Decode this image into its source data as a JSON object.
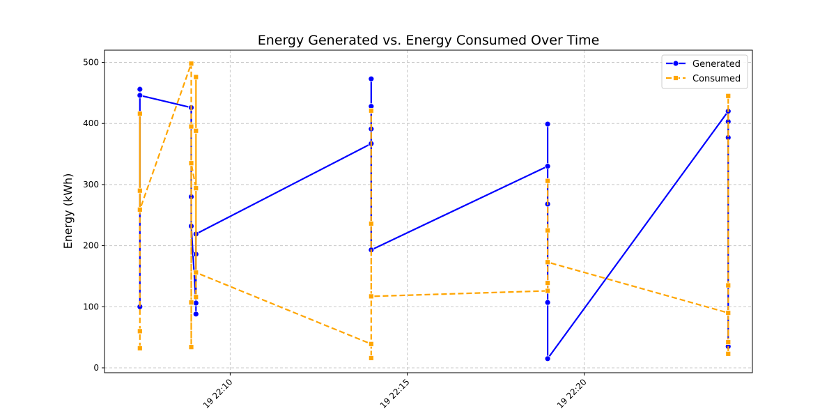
{
  "chart_data": {
    "type": "line",
    "title": "Energy Generated vs. Energy Consumed Over Time",
    "xlabel": "",
    "ylabel": "Energy (kWh)",
    "ylim": [
      -8,
      520
    ],
    "xlim": [
      "19 22:06:27",
      "19 22:24:45"
    ],
    "x_ticks": [
      "19 22:10",
      "19 22:15",
      "19 22:20"
    ],
    "x_tick_values": [
      "19 22:10:00",
      "19 22:15:00",
      "19 22:20:00"
    ],
    "y_ticks": [
      0,
      100,
      200,
      300,
      400,
      500
    ],
    "grid": true,
    "legend_position": "top-right",
    "series": [
      {
        "name": "Generated",
        "color": "#0000ff",
        "line_style": "solid",
        "marker": "circle",
        "points": [
          [
            "19 22:07:27",
            100
          ],
          [
            "19 22:07:27",
            456
          ],
          [
            "19 22:07:27",
            446
          ],
          [
            "19 22:08:54",
            426
          ],
          [
            "19 22:08:54",
            280
          ],
          [
            "19 22:08:54",
            232
          ],
          [
            "19 22:09:02",
            106
          ],
          [
            "19 22:09:02",
            88
          ],
          [
            "19 22:09:02",
            186
          ],
          [
            "19 22:09:02",
            219
          ],
          [
            "19 22:13:59",
            367
          ],
          [
            "19 22:13:59",
            473
          ],
          [
            "19 22:13:59",
            428
          ],
          [
            "19 22:13:59",
            391
          ],
          [
            "19 22:13:59",
            193
          ],
          [
            "19 22:18:58",
            330
          ],
          [
            "19 22:18:58",
            399
          ],
          [
            "19 22:18:58",
            268
          ],
          [
            "19 22:18:58",
            107
          ],
          [
            "19 22:18:58",
            15
          ],
          [
            "19 22:24:04",
            420
          ],
          [
            "19 22:24:04",
            403
          ],
          [
            "19 22:24:04",
            377
          ],
          [
            "19 22:24:04",
            35
          ]
        ]
      },
      {
        "name": "Consumed",
        "color": "#ffa500",
        "line_style": "dashed",
        "marker": "square",
        "points": [
          [
            "19 22:07:27",
            32
          ],
          [
            "19 22:07:27",
            60
          ],
          [
            "19 22:07:27",
            416
          ],
          [
            "19 22:07:27",
            290
          ],
          [
            "19 22:07:27",
            259
          ],
          [
            "19 22:08:54",
            498
          ],
          [
            "19 22:08:54",
            34
          ],
          [
            "19 22:08:54",
            107
          ],
          [
            "19 22:08:54",
            395
          ],
          [
            "19 22:08:54",
            335
          ],
          [
            "19 22:09:02",
            294
          ],
          [
            "19 22:09:02",
            116
          ],
          [
            "19 22:09:02",
            476
          ],
          [
            "19 22:09:02",
            388
          ],
          [
            "19 22:09:02",
            156
          ],
          [
            "19 22:13:59",
            39
          ],
          [
            "19 22:13:59",
            16
          ],
          [
            "19 22:13:59",
            421
          ],
          [
            "19 22:13:59",
            236
          ],
          [
            "19 22:13:59",
            117
          ],
          [
            "19 22:18:58",
            126
          ],
          [
            "19 22:18:58",
            139
          ],
          [
            "19 22:18:58",
            306
          ],
          [
            "19 22:18:58",
            225
          ],
          [
            "19 22:18:58",
            173
          ],
          [
            "19 22:24:04",
            90
          ],
          [
            "19 22:24:04",
            42
          ],
          [
            "19 22:24:04",
            23
          ],
          [
            "19 22:24:04",
            445
          ],
          [
            "19 22:24:04",
            135
          ]
        ]
      }
    ]
  }
}
